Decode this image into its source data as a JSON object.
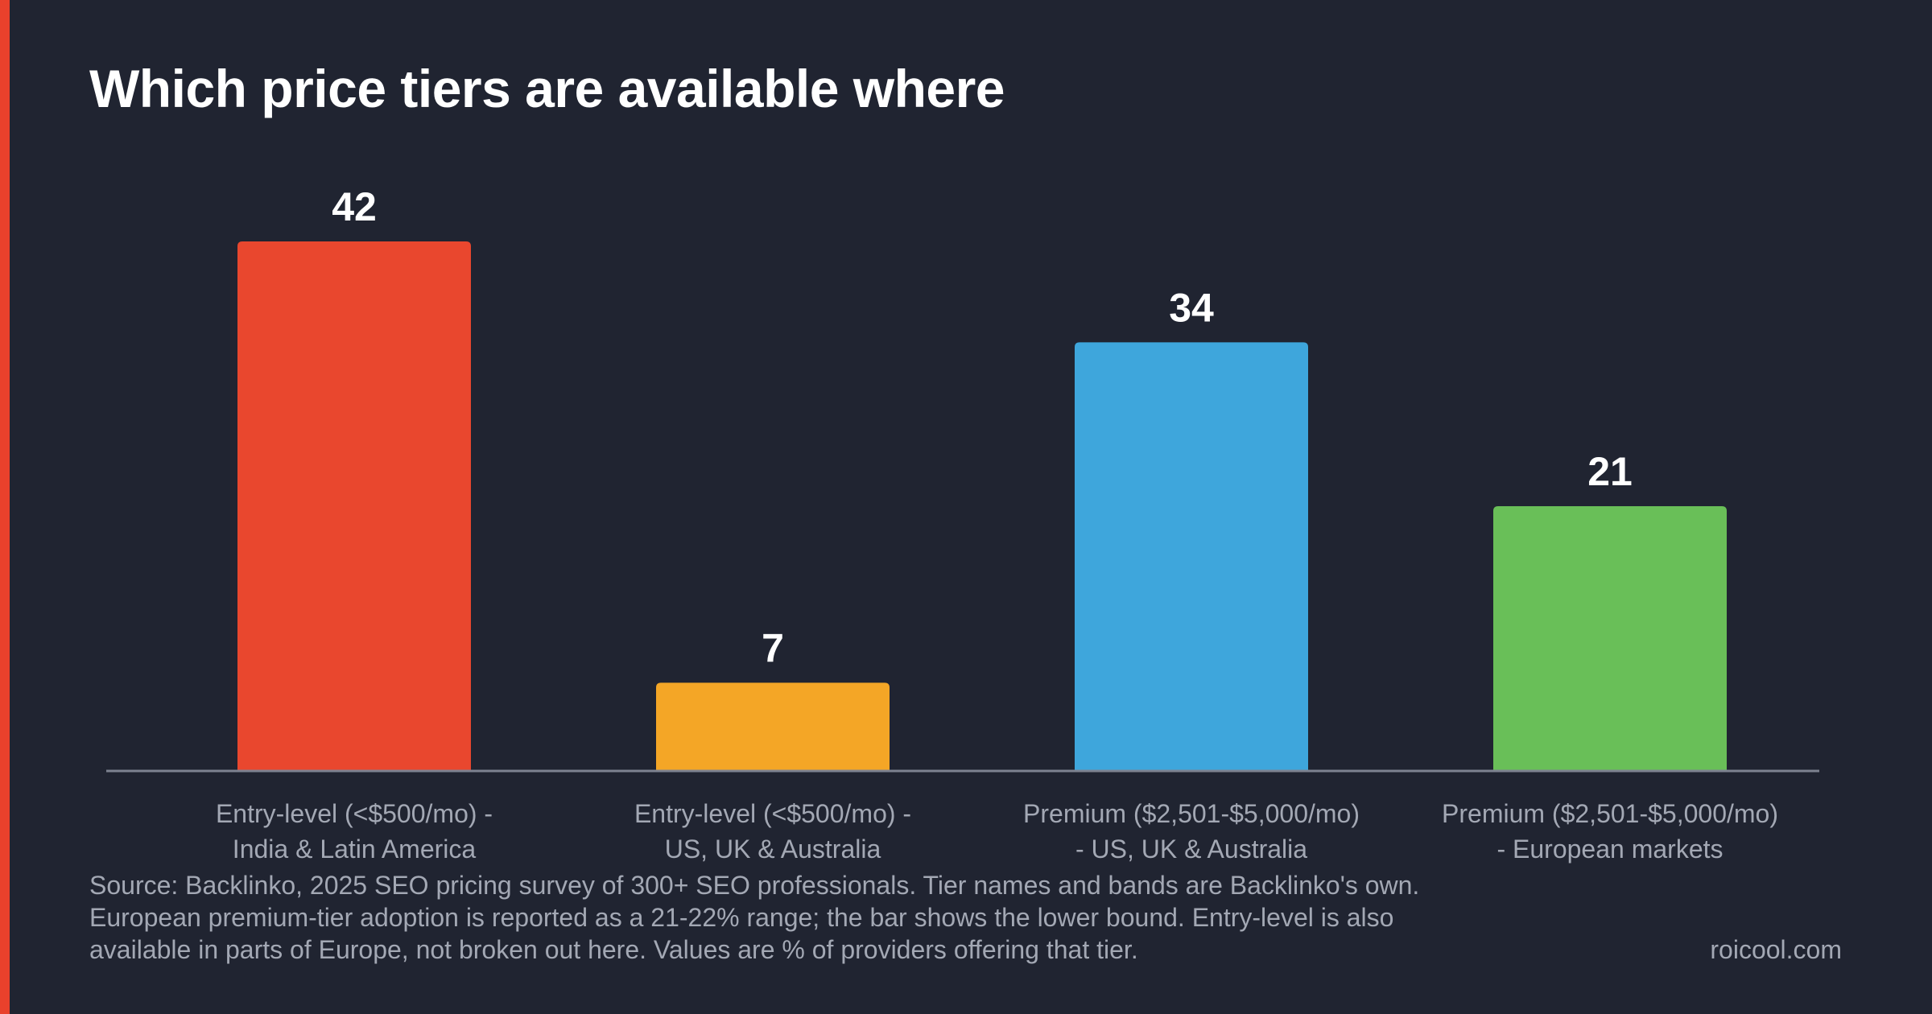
{
  "chart_data": {
    "type": "bar",
    "title": "Which price tiers are available where",
    "categories": [
      "Entry-level (<$500/mo) - India & Latin America",
      "Entry-level (<$500/mo) - US, UK & Australia",
      "Premium ($2,501-$5,000/mo) - US, UK & Australia",
      "Premium ($2,501-$5,000/mo) - European markets"
    ],
    "category_lines": [
      [
        "Entry-level (<$500/mo) -",
        "India & Latin America"
      ],
      [
        "Entry-level (<$500/mo) -",
        "US, UK & Australia"
      ],
      [
        "Premium ($2,501-$5,000/mo)",
        "- US, UK & Australia"
      ],
      [
        "Premium ($2,501-$5,000/mo)",
        "- European markets"
      ]
    ],
    "values": [
      42,
      7,
      34,
      21
    ],
    "data_labels": [
      "42",
      "7",
      "34",
      "21"
    ],
    "colors": [
      "#e9472e",
      "#f4a626",
      "#3ea6dc",
      "#69bf58"
    ],
    "ylim": [
      0,
      42
    ],
    "grid": false,
    "legend": "none",
    "xlabel": "",
    "ylabel": ""
  },
  "footer": {
    "source_lines": [
      "Source: Backlinko, 2025 SEO pricing survey of 300+ SEO professionals. Tier names and bands are Backlinko's own.",
      "European premium-tier adoption is reported as a 21-22% range; the bar shows the lower bound. Entry-level is also",
      "available in parts of Europe, not broken out here. Values are % of providers offering that tier."
    ],
    "brand": "roicool.com"
  },
  "colors": {
    "background": "#202431",
    "accent": "#e9412c",
    "axis": "#7d8290",
    "muted_text": "#a3a8b4"
  }
}
